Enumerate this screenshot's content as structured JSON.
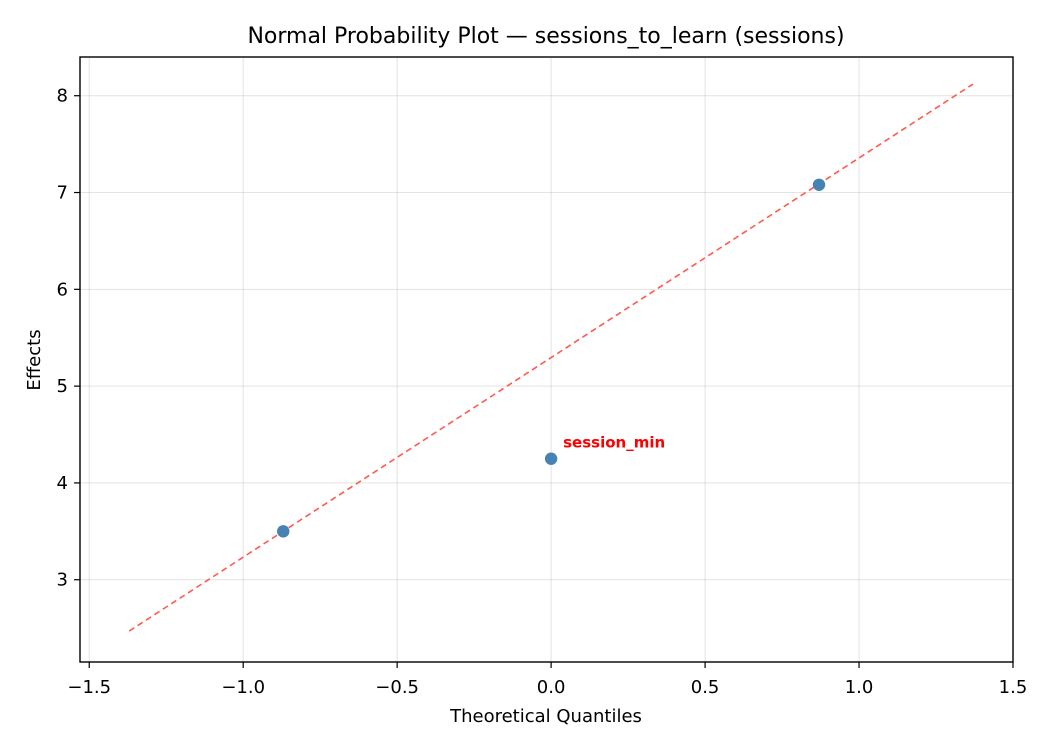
{
  "chart_data": {
    "type": "scatter",
    "title": "Normal Probability Plot — sessions_to_learn (sessions)",
    "xlabel": "Theoretical Quantiles",
    "ylabel": "Effects",
    "xlim": [
      -1.53,
      1.5
    ],
    "ylim": [
      2.15,
      8.4
    ],
    "xticks": [
      -1.5,
      -1.0,
      -0.5,
      0.0,
      0.5,
      1.0,
      1.5
    ],
    "xtick_labels": [
      "−1.5",
      "−1.0",
      "−0.5",
      "0.0",
      "0.5",
      "1.0",
      "1.5"
    ],
    "yticks": [
      3,
      4,
      5,
      6,
      7,
      8
    ],
    "ytick_labels": [
      "3",
      "4",
      "5",
      "6",
      "7",
      "8"
    ],
    "grid": true,
    "points": [
      {
        "x": -0.87,
        "y": 3.5,
        "label": ""
      },
      {
        "x": 0.0,
        "y": 4.25,
        "label": "session_min"
      },
      {
        "x": 0.87,
        "y": 7.08,
        "label": ""
      }
    ],
    "reference_line": {
      "x": [
        -1.37,
        1.37
      ],
      "y": [
        2.47,
        8.12
      ],
      "style": "dashed",
      "color": "#ff5a4f"
    },
    "point_color": "#4682b4",
    "annotation_color": "#ff0000"
  }
}
